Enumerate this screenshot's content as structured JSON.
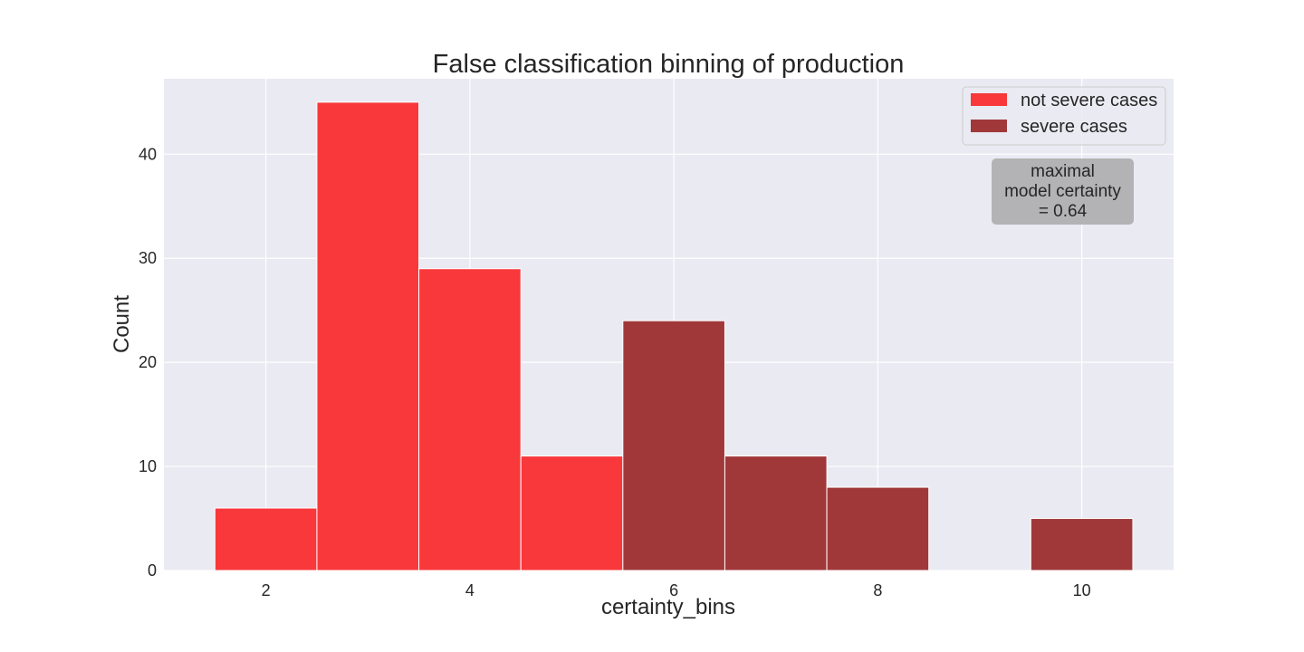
{
  "chart_data": {
    "type": "bar",
    "title": "False classification binning of production",
    "xlabel": "certainty_bins",
    "ylabel": "Count",
    "xlim": [
      1.0,
      10.9
    ],
    "ylim": [
      0,
      47.25
    ],
    "xticks": [
      2,
      4,
      6,
      8,
      10
    ],
    "yticks": [
      0,
      10,
      20,
      30,
      40
    ],
    "bin_width": 1,
    "grid": true,
    "legend_position": "top-right",
    "series": [
      {
        "name": "not severe cases",
        "color": "#f8383b",
        "bins": [
          {
            "x": 2,
            "value": 6
          },
          {
            "x": 3,
            "value": 45
          },
          {
            "x": 4,
            "value": 29
          },
          {
            "x": 5,
            "value": 11
          }
        ]
      },
      {
        "name": "severe cases",
        "color": "#a0383a",
        "bins": [
          {
            "x": 6,
            "value": 24
          },
          {
            "x": 7,
            "value": 11
          },
          {
            "x": 8,
            "value": 8
          },
          {
            "x": 10,
            "value": 5
          }
        ]
      }
    ],
    "annotation": {
      "lines": [
        "maximal",
        "model certainty",
        "= 0.64"
      ],
      "position": "upper-right"
    }
  },
  "colors": {
    "plot_background": "#eaeaf2",
    "grid": "#ffffff",
    "annotation_box": "#b3b3b5"
  }
}
